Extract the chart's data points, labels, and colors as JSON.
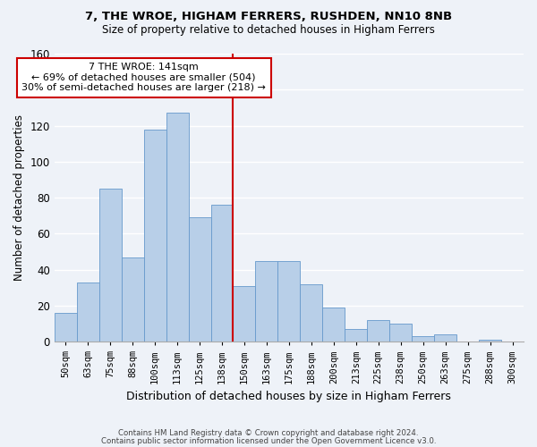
{
  "title": "7, THE WROE, HIGHAM FERRERS, RUSHDEN, NN10 8NB",
  "subtitle": "Size of property relative to detached houses in Higham Ferrers",
  "xlabel": "Distribution of detached houses by size in Higham Ferrers",
  "ylabel": "Number of detached properties",
  "bar_labels": [
    "50sqm",
    "63sqm",
    "75sqm",
    "88sqm",
    "100sqm",
    "113sqm",
    "125sqm",
    "138sqm",
    "150sqm",
    "163sqm",
    "175sqm",
    "188sqm",
    "200sqm",
    "213sqm",
    "225sqm",
    "238sqm",
    "250sqm",
    "263sqm",
    "275sqm",
    "288sqm",
    "300sqm"
  ],
  "bar_values": [
    16,
    33,
    85,
    47,
    118,
    127,
    69,
    76,
    31,
    45,
    45,
    32,
    19,
    7,
    12,
    10,
    3,
    4,
    0,
    1,
    0
  ],
  "bar_color": "#b8cfe8",
  "bar_edge_color": "#6699cc",
  "vline_color": "#cc0000",
  "annotation_title": "7 THE WROE: 141sqm",
  "annotation_line1": "← 69% of detached houses are smaller (504)",
  "annotation_line2": "30% of semi-detached houses are larger (218) →",
  "annotation_box_color": "#ffffff",
  "annotation_box_edge": "#cc0000",
  "ylim": [
    0,
    160
  ],
  "yticks": [
    0,
    20,
    40,
    60,
    80,
    100,
    120,
    140,
    160
  ],
  "footer1": "Contains HM Land Registry data © Crown copyright and database right 2024.",
  "footer2": "Contains public sector information licensed under the Open Government Licence v3.0.",
  "bg_color": "#eef2f8"
}
